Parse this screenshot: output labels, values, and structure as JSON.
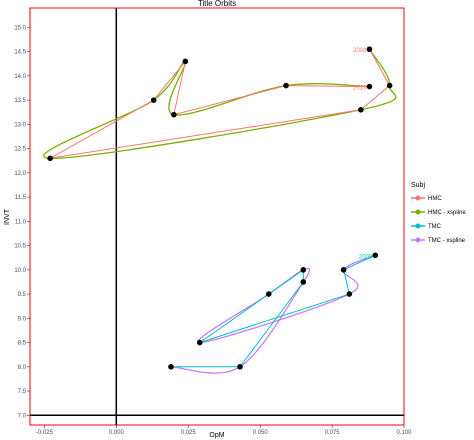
{
  "chart_data": {
    "type": "line",
    "title": "Title Orbits",
    "xlabel": "OpM",
    "ylabel": "INVT",
    "xlim": [
      -0.03,
      0.1
    ],
    "ylim": [
      6.8,
      15.4
    ],
    "x_ticks": [
      -0.025,
      0.0,
      0.025,
      0.05,
      0.075,
      0.1
    ],
    "x_tick_labels": [
      "-0.025",
      "0.000",
      "0.025",
      "0.050",
      "0.075",
      "0.100"
    ],
    "y_ticks": [
      7.0,
      7.5,
      8.0,
      8.5,
      9.0,
      9.5,
      10.0,
      10.5,
      11.0,
      11.5,
      12.0,
      12.5,
      13.0,
      13.5,
      14.0,
      14.5,
      15.0
    ],
    "y_tick_labels": [
      "7.0",
      "7.5",
      "8.0",
      "8.5",
      "9.0",
      "9.5",
      "10.0",
      "10.5",
      "11.0",
      "11.5",
      "12.0",
      "12.5",
      "13.0",
      "13.5",
      "14.0",
      "14.5",
      "15.0"
    ],
    "reference_lines": {
      "x": 0.0,
      "y": 7.0
    },
    "grid": false,
    "legend": {
      "title": "Subj",
      "position": "right",
      "entries": [
        {
          "label": "HMC",
          "color": "#F8766D"
        },
        {
          "label": "HMC - xspline",
          "color": "#7CAE00"
        },
        {
          "label": "TMC",
          "color": "#00BFC4"
        },
        {
          "label": "TMC - xspline",
          "color": "#C77CFF"
        }
      ]
    },
    "series": [
      {
        "name": "HMC",
        "color": "#F8766D",
        "points": [
          {
            "x": 0.088,
            "y": 14.55
          },
          {
            "x": 0.095,
            "y": 13.8
          },
          {
            "x": 0.085,
            "y": 13.3
          },
          {
            "x": -0.023,
            "y": 12.3
          },
          {
            "x": 0.013,
            "y": 13.5
          },
          {
            "x": 0.024,
            "y": 14.3
          },
          {
            "x": 0.02,
            "y": 13.2
          },
          {
            "x": 0.059,
            "y": 13.8
          },
          {
            "x": 0.088,
            "y": 13.78
          }
        ]
      },
      {
        "name": "TMC",
        "color": "#00BFC4",
        "points": [
          {
            "x": 0.09,
            "y": 10.3
          },
          {
            "x": 0.079,
            "y": 10.0
          },
          {
            "x": 0.081,
            "y": 9.5
          },
          {
            "x": 0.029,
            "y": 8.5
          },
          {
            "x": 0.053,
            "y": 9.5
          },
          {
            "x": 0.065,
            "y": 10.0
          },
          {
            "x": 0.065,
            "y": 9.75
          },
          {
            "x": 0.043,
            "y": 8.0
          },
          {
            "x": 0.019,
            "y": 8.0
          }
        ]
      }
    ],
    "point_labels": [
      {
        "text": "2008",
        "x": 0.088,
        "y": 14.55,
        "series": "HMC"
      },
      {
        "text": "2015",
        "x": 0.088,
        "y": 13.78,
        "series": "HMC"
      },
      {
        "text": "2008",
        "x": 0.09,
        "y": 10.3,
        "series": "TMC"
      }
    ]
  }
}
